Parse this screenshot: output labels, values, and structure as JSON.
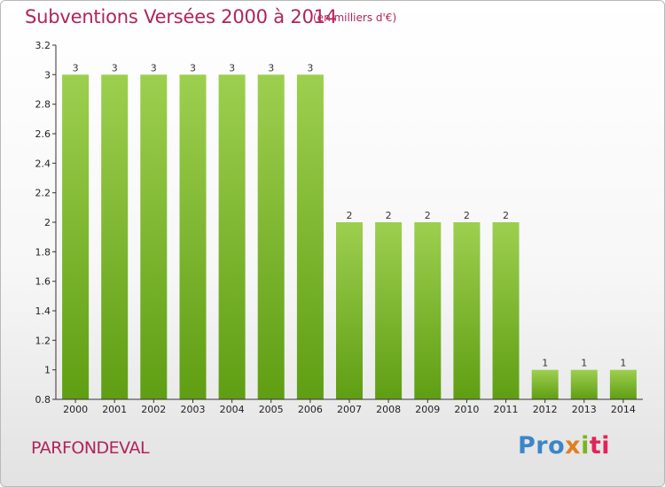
{
  "title": "Subventions Versées 2000 à 2014",
  "subtitle": "(en milliers d'€)",
  "commune": "PARFONDEVAL",
  "logo": {
    "p1": "Pro",
    "p2": "x",
    "p3": "i",
    "p4": "ti"
  },
  "colors": {
    "title": "#b0245a",
    "bar_top": "#9dcf4f",
    "bar_bottom": "#5f9e13",
    "axis": "#333333"
  },
  "chart_data": {
    "type": "bar",
    "categories": [
      "2000",
      "2001",
      "2002",
      "2003",
      "2004",
      "2005",
      "2006",
      "2007",
      "2008",
      "2009",
      "2010",
      "2011",
      "2012",
      "2013",
      "2014"
    ],
    "values": [
      3,
      3,
      3,
      3,
      3,
      3,
      3,
      2,
      2,
      2,
      2,
      2,
      1,
      1,
      1
    ],
    "data_labels": [
      "3",
      "3",
      "3",
      "3",
      "3",
      "3",
      "3",
      "2",
      "2",
      "2",
      "2",
      "2",
      "1",
      "1",
      "1"
    ],
    "title": "Subventions Versées 2000 à 2014",
    "subtitle": "(en milliers d'€)",
    "ylim": [
      0.8,
      3.2
    ],
    "yticks": [
      0.8,
      1,
      1.2,
      1.4,
      1.6,
      1.8,
      2,
      2.2,
      2.4,
      2.6,
      2.8,
      3,
      3.2
    ],
    "ytick_labels": [
      "0.8",
      "1",
      "1.2",
      "1.4",
      "1.6",
      "1.8",
      "2",
      "2.2",
      "2.4",
      "2.6",
      "2.8",
      "3",
      "3.2"
    ],
    "grid": false
  }
}
